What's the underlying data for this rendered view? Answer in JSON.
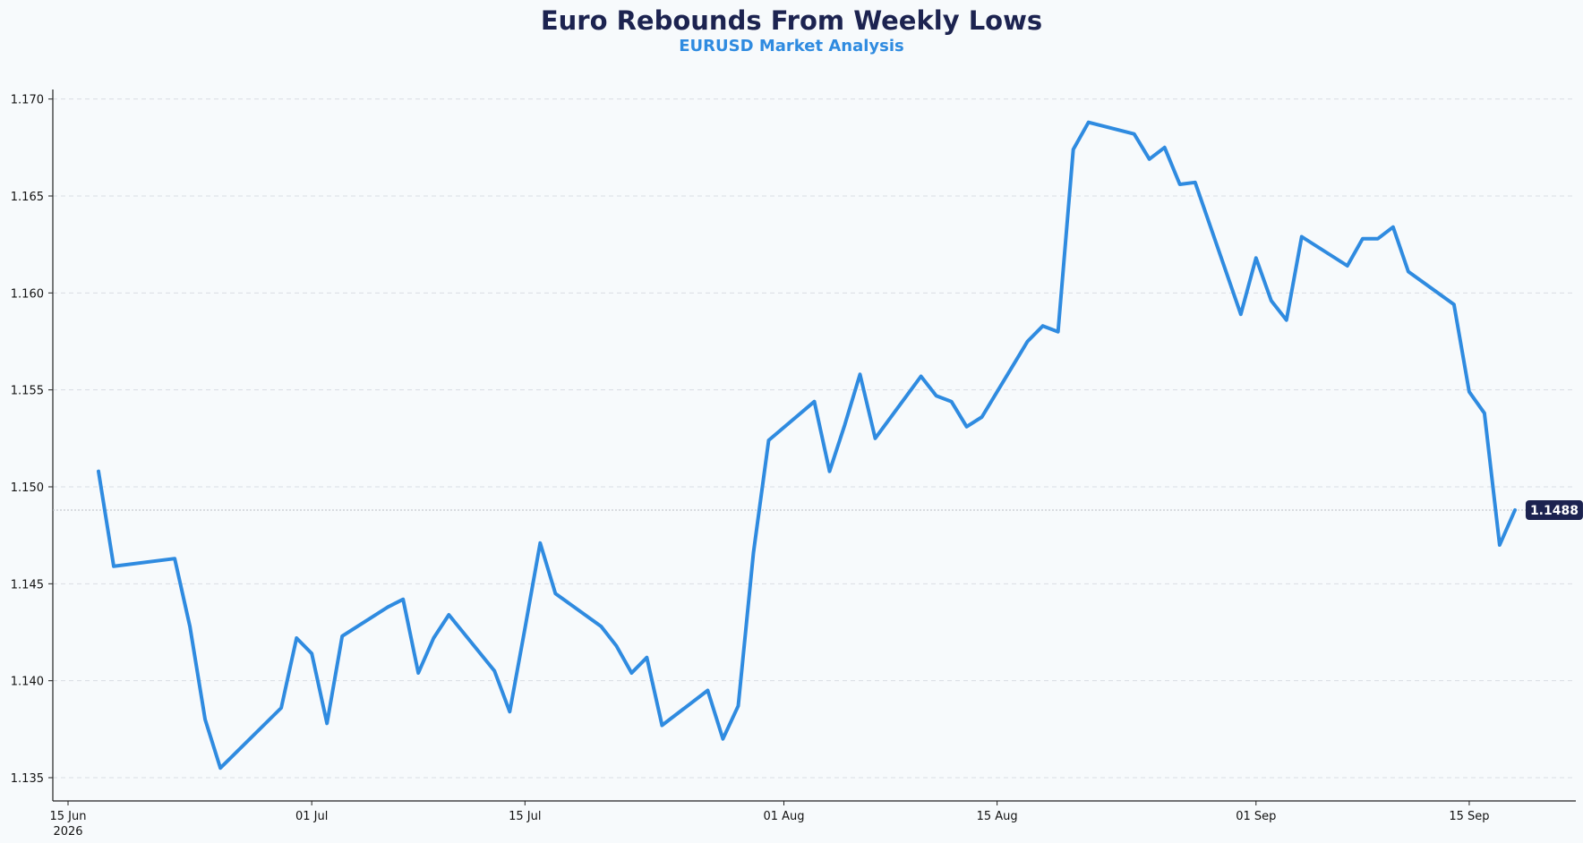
{
  "title": "Euro Rebounds From Weekly Lows",
  "subtitle": "EURUSD Market Analysis",
  "colors": {
    "background": "#f7fafc",
    "line": "#2f8be0",
    "title": "#1c2350",
    "subtitle": "#2f8be0",
    "label_bg": "#1c2350",
    "grid": "#d9dde3"
  },
  "chart_data": {
    "type": "line",
    "title": "Euro Rebounds From Weekly Lows",
    "subtitle": "EURUSD Market Analysis",
    "xlabel": "",
    "ylabel": "",
    "xlim": [
      "2026-06-14",
      "2026-09-22"
    ],
    "ylim": [
      1.1338,
      1.1704
    ],
    "y_ticks": [
      1.135,
      1.14,
      1.145,
      1.15,
      1.155,
      1.16,
      1.165,
      1.17
    ],
    "y_tick_labels": [
      "1.135",
      "1.140",
      "1.145",
      "1.150",
      "1.155",
      "1.160",
      "1.165",
      "1.170"
    ],
    "x_ticks": [
      {
        "date": "2026-06-15",
        "label": "15 Jun",
        "sublabel": "2026"
      },
      {
        "date": "2026-07-01",
        "label": "01 Jul",
        "sublabel": ""
      },
      {
        "date": "2026-07-15",
        "label": "15 Jul",
        "sublabel": ""
      },
      {
        "date": "2026-08-01",
        "label": "01 Aug",
        "sublabel": ""
      },
      {
        "date": "2026-08-15",
        "label": "15 Aug",
        "sublabel": ""
      },
      {
        "date": "2026-09-01",
        "label": "01 Sep",
        "sublabel": ""
      },
      {
        "date": "2026-09-15",
        "label": "15 Sep",
        "sublabel": ""
      }
    ],
    "grid": "horizontal dashed",
    "last_value_label": "1.1488",
    "last_value": 1.1488,
    "series": [
      {
        "x": [
          "2026-06-17",
          "2026-06-18",
          "2026-06-22",
          "2026-06-23",
          "2026-06-24",
          "2026-06-25",
          "2026-06-29",
          "2026-06-30",
          "2026-07-01",
          "2026-07-02",
          "2026-07-03",
          "2026-07-06",
          "2026-07-07",
          "2026-07-08",
          "2026-07-09",
          "2026-07-10",
          "2026-07-13",
          "2026-07-14",
          "2026-07-15",
          "2026-07-16",
          "2026-07-17",
          "2026-07-20",
          "2026-07-21",
          "2026-07-22",
          "2026-07-23",
          "2026-07-24",
          "2026-07-27",
          "2026-07-28",
          "2026-07-29",
          "2026-07-30",
          "2026-07-31",
          "2026-08-03",
          "2026-08-04",
          "2026-08-05",
          "2026-08-06",
          "2026-08-07",
          "2026-08-10",
          "2026-08-11",
          "2026-08-12",
          "2026-08-13",
          "2026-08-14",
          "2026-08-17",
          "2026-08-18",
          "2026-08-19",
          "2026-08-20",
          "2026-08-21",
          "2026-08-24",
          "2026-08-25",
          "2026-08-26",
          "2026-08-27",
          "2026-08-28",
          "2026-08-31",
          "2026-09-01",
          "2026-09-02",
          "2026-09-03",
          "2026-09-04",
          "2026-09-07",
          "2026-09-08",
          "2026-09-09",
          "2026-09-10",
          "2026-09-11",
          "2026-09-14",
          "2026-09-15",
          "2026-09-16",
          "2026-09-17",
          "2026-09-18"
        ],
        "y": [
          1.1508,
          1.1459,
          1.1463,
          1.1428,
          1.138,
          1.1355,
          1.1386,
          1.1422,
          1.1414,
          1.1378,
          1.1423,
          1.1438,
          1.1442,
          1.1404,
          1.1422,
          1.1434,
          1.1405,
          1.1384,
          1.1427,
          1.1471,
          1.1445,
          1.1428,
          1.1418,
          1.1404,
          1.1412,
          1.1377,
          1.1395,
          1.137,
          1.1387,
          1.1466,
          1.1524,
          1.1544,
          1.1508,
          1.1532,
          1.1558,
          1.1525,
          1.1557,
          1.1547,
          1.1544,
          1.1531,
          1.1536,
          1.1575,
          1.1583,
          1.158,
          1.1674,
          1.1688,
          1.1682,
          1.1669,
          1.1675,
          1.1656,
          1.1657,
          1.1589,
          1.1618,
          1.1596,
          1.1586,
          1.1629,
          1.1614,
          1.1628,
          1.1628,
          1.1634,
          1.1611,
          1.1594,
          1.1549,
          1.1538,
          1.147,
          1.1488
        ]
      }
    ]
  }
}
